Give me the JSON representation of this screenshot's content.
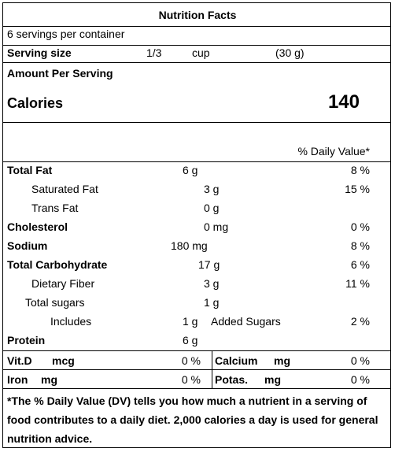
{
  "title": "Nutrition Facts",
  "servings_per_container": "6  servings  per  container",
  "serving": {
    "label": "Serving size",
    "amount": "1/3",
    "unit": "cup",
    "grams": "(30 g)"
  },
  "amount_per_serving": "Amount Per Serving",
  "calories": {
    "label": "Calories",
    "value": "140"
  },
  "daily_value_header": "% Daily Value*",
  "nutrients": {
    "total_fat": {
      "label": "Total Fat",
      "amount": "6 g",
      "dv": "8 %"
    },
    "saturated_fat": {
      "label": "Saturated Fat",
      "amount": "3 g",
      "dv": "15 %"
    },
    "trans_fat": {
      "label": "Trans Fat",
      "amount": "0 g"
    },
    "cholesterol": {
      "label": "Cholesterol",
      "amount": "0 mg",
      "dv": "0 %"
    },
    "sodium": {
      "label": "Sodium",
      "amount": "180 mg",
      "dv": "8 %"
    },
    "total_carb": {
      "label": "Total Carbohydrate",
      "amount": "17 g",
      "dv": "6 %"
    },
    "dietary_fiber": {
      "label": "Dietary Fiber",
      "amount": "3 g",
      "dv": "11 %"
    },
    "total_sugars": {
      "label": "Total sugars",
      "amount": "1 g"
    },
    "added_sugars": {
      "label": "Includes",
      "amount": "1 g",
      "suffix": "Added Sugars",
      "dv": "2 %"
    },
    "protein": {
      "label": "Protein",
      "amount": "6 g"
    }
  },
  "vitamins": {
    "vitd": {
      "label": "Vit.D",
      "unit": "mcg",
      "dv": "0 %"
    },
    "calcium": {
      "label": "Calcium",
      "unit": "mg",
      "dv": "0 %"
    },
    "iron": {
      "label": "Iron",
      "unit": "mg",
      "dv": "0 %"
    },
    "potassium": {
      "label": "Potas.",
      "unit": "mg",
      "dv": "0 %"
    }
  },
  "footnote": "*The % Daily Value (DV) tells you how much a nutrient in a serving of food contributes to a daily diet. 2,000 calories a day is used for general nutrition advice."
}
